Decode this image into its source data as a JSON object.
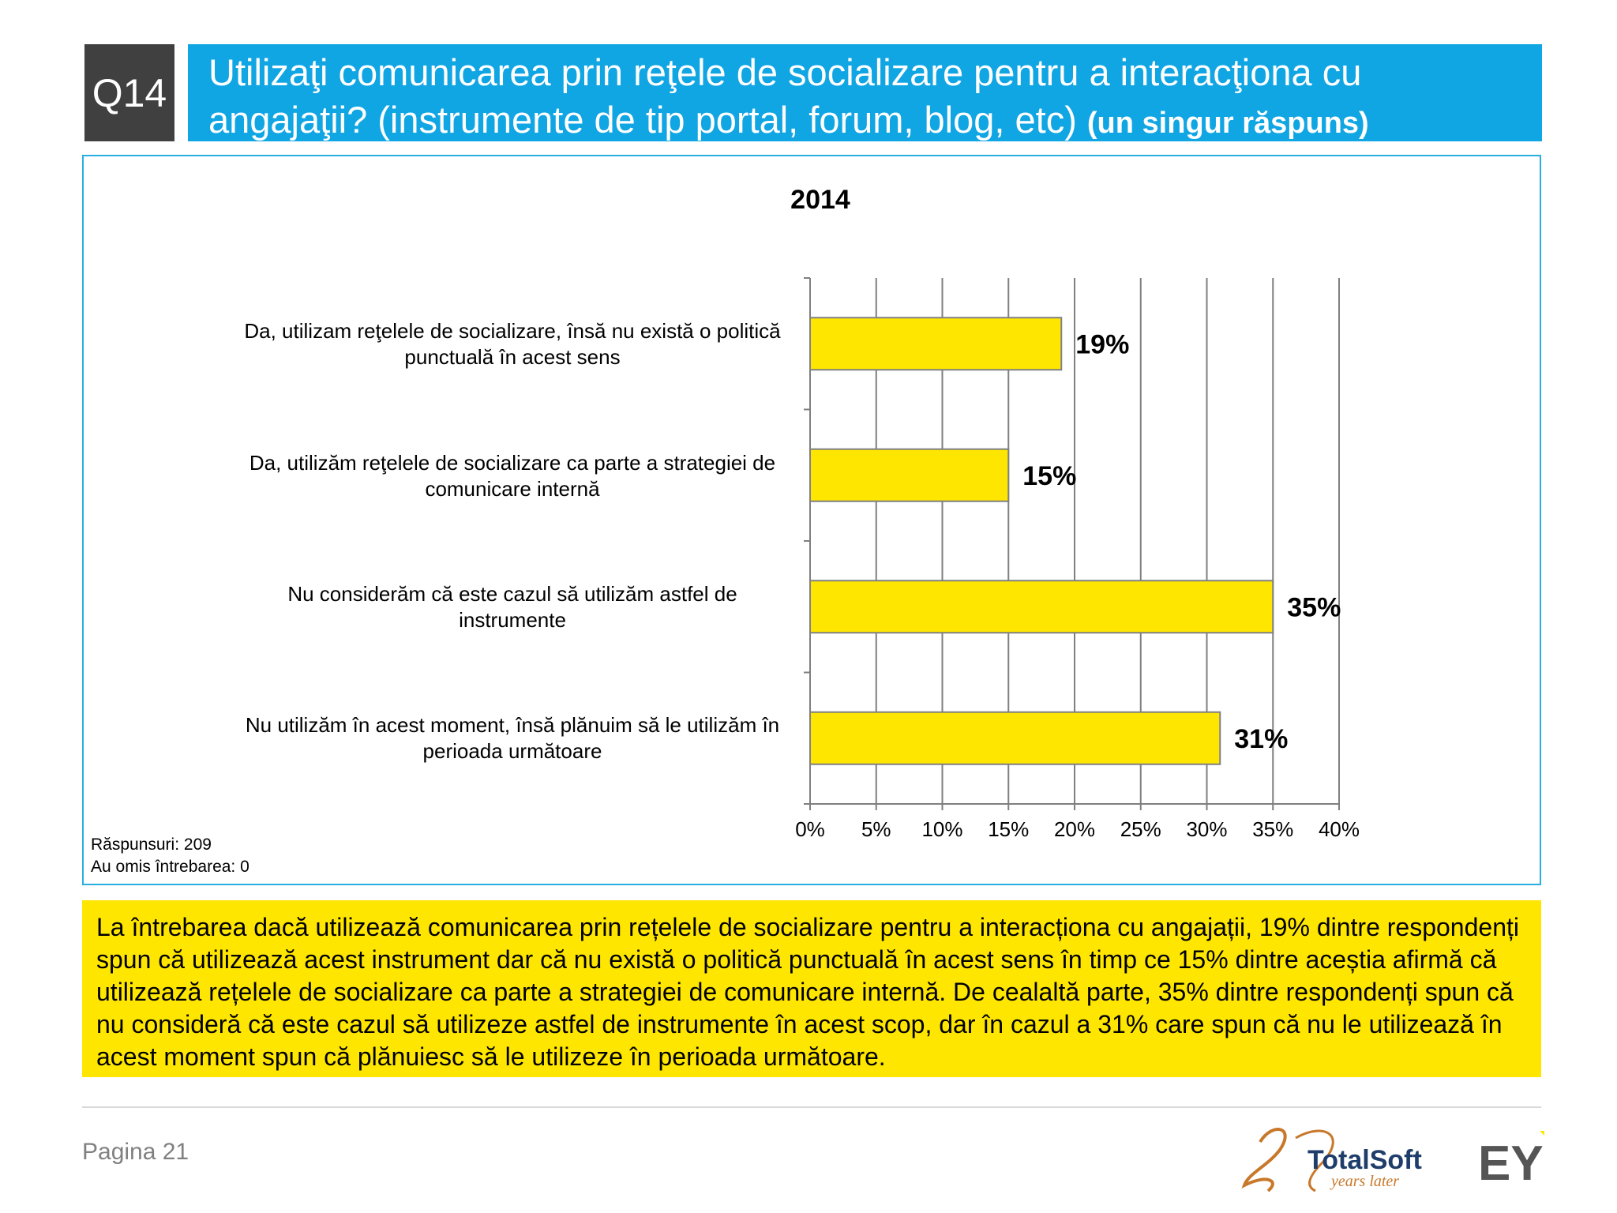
{
  "header": {
    "question_id": "Q14",
    "title": "Utilizaţi comunicarea prin reţele de socializare pentru a interacţiona cu angajaţii? (instrumente de tip portal, forum, blog, etc)",
    "note": "(un singur răspuns)"
  },
  "chart_data": {
    "type": "bar",
    "orientation": "horizontal",
    "title": "2014",
    "categories": [
      "Da, utilizam reţelele de socializare, însă nu există o politică punctuală în acest sens",
      "Da, utilizăm reţelele de socializare ca parte a strategiei de comunicare internă",
      "Nu considerăm că este cazul să utilizăm astfel de instrumente",
      "Nu utilizăm în acest moment, însă plănuim să le utilizăm în perioada următoare"
    ],
    "values": [
      19,
      15,
      35,
      31
    ],
    "data_labels": [
      "19%",
      "15%",
      "35%",
      "31%"
    ],
    "xlim": [
      0,
      40
    ],
    "x_ticks": [
      "0%",
      "5%",
      "10%",
      "15%",
      "20%",
      "25%",
      "30%",
      "35%",
      "40%"
    ],
    "grid": true,
    "bar_color": "#ffe600",
    "bar_border_color": "#808080"
  },
  "stats": {
    "responses": "Răspunsuri: 209",
    "skipped": "Au omis întrebarea: 0"
  },
  "summary": "La întrebarea dacă utilizează comunicarea prin rețelele de socializare pentru a interacționa cu angajații, 19% dintre respondenți spun că utilizează acest instrument dar că nu există o politică punctuală în acest sens în timp ce 15% dintre aceștia afirmă că utilizează rețelele de socializare ca parte a strategiei de comunicare internă. De cealaltă parte, 35% dintre respondenți spun că nu consideră că este cazul să utilizeze astfel de instrumente în acest scop, dar în cazul a 31% care spun că nu le utilizează în acest moment spun că plănuiesc să le utilizeze în perioada următoare.",
  "footer": {
    "page": "Pagina 21",
    "logo_totalsoft": "TotalSoft",
    "logo_totalsoft_tagline": "years later",
    "logo_ey": "EY"
  },
  "colors": {
    "title_bar": "#10a5e3",
    "badge": "#404040",
    "summary_bg": "#ffe600",
    "chart_border": "#29aee2"
  }
}
